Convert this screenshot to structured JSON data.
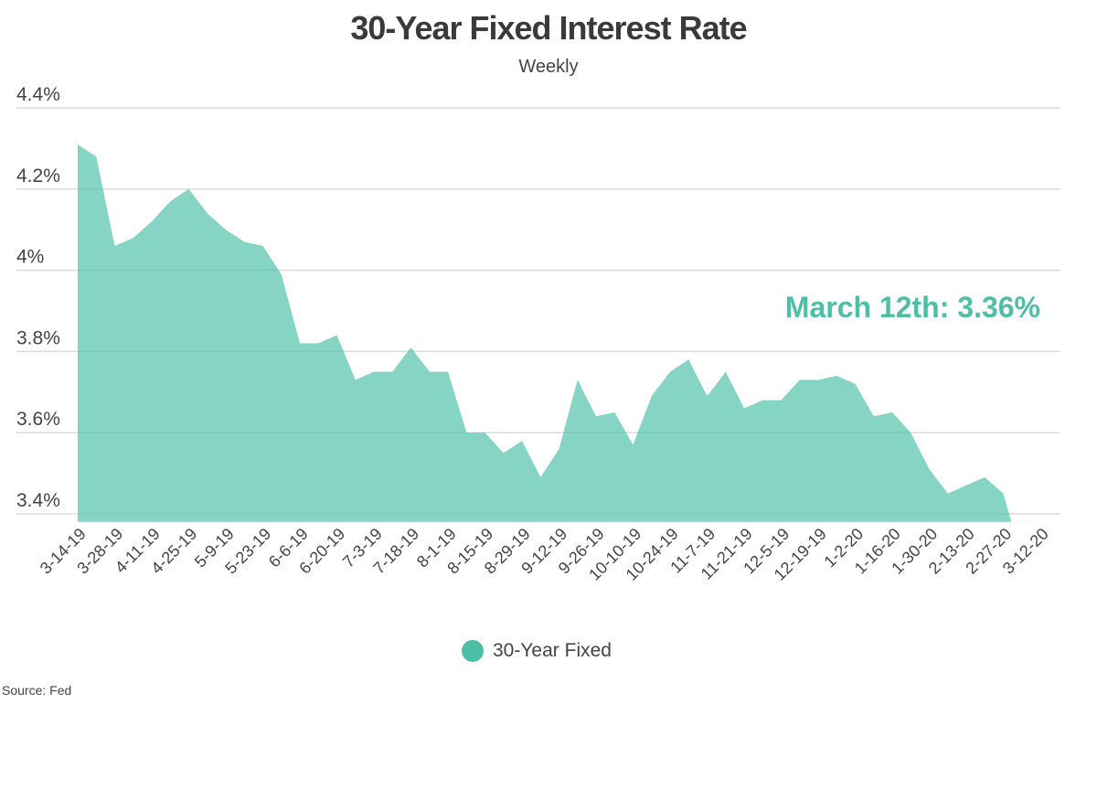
{
  "chart_data": {
    "type": "area",
    "title": "30-Year Fixed Interest Rate",
    "subtitle": "Weekly",
    "xlabel": "",
    "ylabel": "",
    "ylim": [
      3.38,
      4.4
    ],
    "yticks": [
      3.4,
      3.6,
      3.8,
      4.0,
      4.2,
      4.4
    ],
    "ytick_labels": [
      "3.4%",
      "3.6%",
      "3.8%",
      "4%",
      "4.2%",
      "4.4%"
    ],
    "grid": true,
    "x": [
      "3-14-19",
      "3-21-19",
      "3-28-19",
      "4-4-19",
      "4-11-19",
      "4-18-19",
      "4-25-19",
      "5-2-19",
      "5-9-19",
      "5-16-19",
      "5-23-19",
      "5-30-19",
      "6-6-19",
      "6-13-19",
      "6-20-19",
      "6-27-19",
      "7-3-19",
      "7-11-19",
      "7-18-19",
      "7-25-19",
      "8-1-19",
      "8-8-19",
      "8-15-19",
      "8-22-19",
      "8-29-19",
      "9-5-19",
      "9-12-19",
      "9-19-19",
      "9-26-19",
      "10-3-19",
      "10-10-19",
      "10-17-19",
      "10-24-19",
      "10-31-19",
      "11-7-19",
      "11-14-19",
      "11-21-19",
      "11-27-19",
      "12-5-19",
      "12-12-19",
      "12-19-19",
      "12-26-19",
      "1-2-20",
      "1-9-20",
      "1-16-20",
      "1-23-20",
      "1-30-20",
      "2-6-20",
      "2-13-20",
      "2-20-20",
      "2-27-20",
      "3-5-20",
      "3-12-20"
    ],
    "xtick_labels": [
      "3-14-19",
      "3-28-19",
      "4-11-19",
      "4-25-19",
      "5-9-19",
      "5-23-19",
      "6-6-19",
      "6-20-19",
      "7-3-19",
      "7-18-19",
      "8-1-19",
      "8-15-19",
      "8-29-19",
      "9-12-19",
      "9-26-19",
      "10-10-19",
      "10-24-19",
      "11-7-19",
      "11-21-19",
      "12-5-19",
      "12-19-19",
      "1-2-20",
      "1-16-20",
      "1-30-20",
      "2-13-20",
      "2-27-20",
      "3-12-20"
    ],
    "series": [
      {
        "name": "30-Year Fixed",
        "color": "#4dbfa6",
        "values": [
          4.31,
          4.28,
          4.06,
          4.08,
          4.12,
          4.17,
          4.2,
          4.14,
          4.1,
          4.07,
          4.06,
          3.99,
          3.82,
          3.82,
          3.84,
          3.73,
          3.75,
          3.75,
          3.81,
          3.75,
          3.75,
          3.6,
          3.6,
          3.55,
          3.58,
          3.49,
          3.56,
          3.73,
          3.64,
          3.65,
          3.57,
          3.69,
          3.75,
          3.78,
          3.69,
          3.75,
          3.66,
          3.68,
          3.68,
          3.73,
          3.73,
          3.74,
          3.72,
          3.64,
          3.65,
          3.6,
          3.51,
          3.45,
          3.47,
          3.49,
          3.45,
          3.29,
          3.36
        ]
      }
    ],
    "annotation": "March 12th: 3.36%",
    "legend": {
      "label": "30-Year Fixed",
      "position": "bottom-center"
    }
  },
  "source": "Source:  Fed"
}
